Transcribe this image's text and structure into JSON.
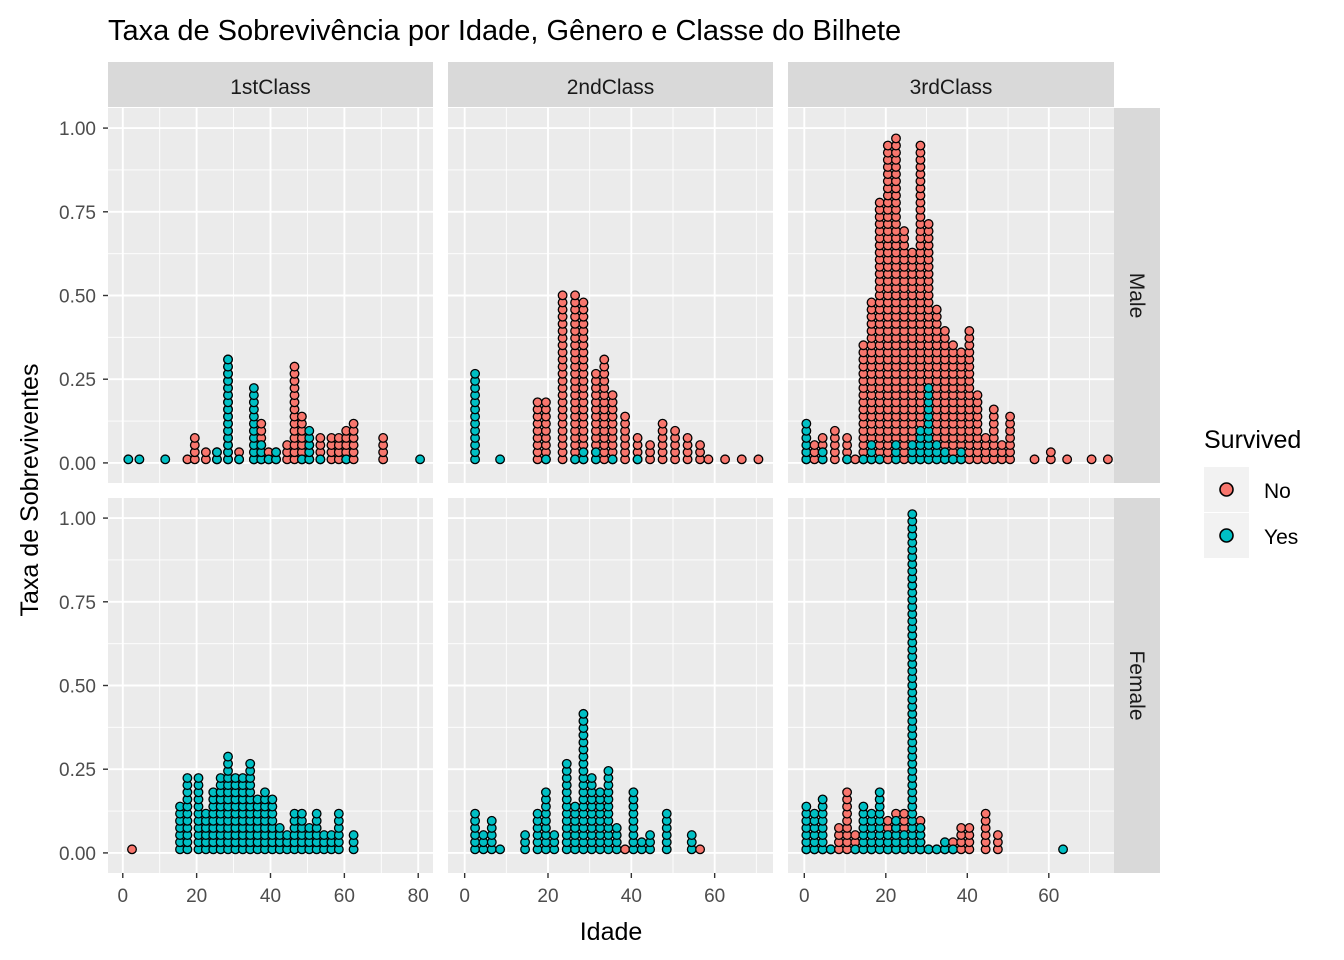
{
  "chart_data": {
    "type": "dotplot",
    "title": "Taxa de Sobrevivência por Idade, Gênero e Classe do Bilhete",
    "xlabel": "Idade",
    "ylabel": "Taxa de Sobreviventes",
    "ylim": [
      -0.06,
      1.06
    ],
    "yticks": [
      0.0,
      0.25,
      0.5,
      0.75,
      1.0
    ],
    "ytick_labels": [
      "0.00",
      "0.25",
      "0.50",
      "0.75",
      "1.00"
    ],
    "dot_step": 0.0213,
    "grid": true,
    "legend": {
      "title": "Survived",
      "position": "right",
      "entries": [
        {
          "label": "No",
          "color": "#F8766D"
        },
        {
          "label": "Yes",
          "color": "#00BFC4"
        }
      ]
    },
    "column_labels": [
      "1stClass",
      "2ndClass",
      "3rdClass"
    ],
    "row_labels": [
      "Male",
      "Female"
    ],
    "panels": [
      {
        "class": "1stClass",
        "sex": "Male",
        "xlim": [
          -4,
          84
        ],
        "xticks": [
          0,
          20,
          40,
          60,
          80
        ],
        "stacks": [
          {
            "x": 1.5,
            "no": 0,
            "yes": 1
          },
          {
            "x": 4.5,
            "no": 0,
            "yes": 1
          },
          {
            "x": 11.5,
            "no": 0,
            "yes": 1
          },
          {
            "x": 17.5,
            "no": 1,
            "yes": 0
          },
          {
            "x": 19.5,
            "no": 4,
            "yes": 0
          },
          {
            "x": 22.5,
            "no": 2,
            "yes": 0
          },
          {
            "x": 25.5,
            "no": 2,
            "yes": 2
          },
          {
            "x": 28.5,
            "no": 15,
            "yes": 15
          },
          {
            "x": 31.5,
            "no": 2,
            "yes": 1
          },
          {
            "x": 35.5,
            "no": 1,
            "yes": 11
          },
          {
            "x": 37.5,
            "no": 6,
            "yes": 3
          },
          {
            "x": 39.5,
            "no": 2,
            "yes": 1
          },
          {
            "x": 41.5,
            "no": 2,
            "yes": 2
          },
          {
            "x": 44.5,
            "no": 3,
            "yes": 0
          },
          {
            "x": 46.5,
            "no": 14,
            "yes": 0
          },
          {
            "x": 48.5,
            "no": 7,
            "yes": 1
          },
          {
            "x": 50.5,
            "no": 3,
            "yes": 5
          },
          {
            "x": 53.5,
            "no": 4,
            "yes": 1
          },
          {
            "x": 56.5,
            "no": 4,
            "yes": 0
          },
          {
            "x": 58.5,
            "no": 4,
            "yes": 0
          },
          {
            "x": 60.5,
            "no": 5,
            "yes": 1
          },
          {
            "x": 62.5,
            "no": 6,
            "yes": 0
          },
          {
            "x": 70.5,
            "no": 4,
            "yes": 0
          },
          {
            "x": 80.5,
            "no": 0,
            "yes": 1
          }
        ]
      },
      {
        "class": "2ndClass",
        "sex": "Male",
        "xlim": [
          -4,
          74
        ],
        "xticks": [
          0,
          20,
          40,
          60
        ],
        "stacks": [
          {
            "x": 2.5,
            "no": 0,
            "yes": 13
          },
          {
            "x": 8.5,
            "no": 0,
            "yes": 1
          },
          {
            "x": 17.5,
            "no": 9,
            "yes": 0
          },
          {
            "x": 19.5,
            "no": 9,
            "yes": 1
          },
          {
            "x": 23.5,
            "no": 24,
            "yes": 0
          },
          {
            "x": 26.5,
            "no": 24,
            "yes": 1
          },
          {
            "x": 28.5,
            "no": 23,
            "yes": 2
          },
          {
            "x": 31.5,
            "no": 13,
            "yes": 2
          },
          {
            "x": 33.5,
            "no": 15,
            "yes": 0
          },
          {
            "x": 35.5,
            "no": 10,
            "yes": 1
          },
          {
            "x": 38.5,
            "no": 7,
            "yes": 0
          },
          {
            "x": 41.5,
            "no": 4,
            "yes": 1
          },
          {
            "x": 44.5,
            "no": 3,
            "yes": 0
          },
          {
            "x": 47.5,
            "no": 6,
            "yes": 0
          },
          {
            "x": 50.5,
            "no": 5,
            "yes": 0
          },
          {
            "x": 53.5,
            "no": 4,
            "yes": 0
          },
          {
            "x": 56.5,
            "no": 3,
            "yes": 0
          },
          {
            "x": 58.5,
            "no": 1,
            "yes": 0
          },
          {
            "x": 62.5,
            "no": 1,
            "yes": 0
          },
          {
            "x": 66.5,
            "no": 1,
            "yes": 0
          },
          {
            "x": 70.5,
            "no": 1,
            "yes": 0
          }
        ]
      },
      {
        "class": "3rdClass",
        "sex": "Male",
        "xlim": [
          -4,
          76
        ],
        "xticks": [
          0,
          20,
          40,
          60
        ],
        "stacks": [
          {
            "x": 0.5,
            "no": 2,
            "yes": 6
          },
          {
            "x": 2.5,
            "no": 3,
            "yes": 0
          },
          {
            "x": 4.5,
            "no": 4,
            "yes": 2
          },
          {
            "x": 7.5,
            "no": 5,
            "yes": 0
          },
          {
            "x": 10.5,
            "no": 4,
            "yes": 1
          },
          {
            "x": 12.5,
            "no": 1,
            "yes": 0
          },
          {
            "x": 14.5,
            "no": 17,
            "yes": 1
          },
          {
            "x": 16.5,
            "no": 23,
            "yes": 3
          },
          {
            "x": 18.5,
            "no": 37,
            "yes": 1
          },
          {
            "x": 20.5,
            "no": 45,
            "yes": 0
          },
          {
            "x": 22.5,
            "no": 46,
            "yes": 3
          },
          {
            "x": 24.5,
            "no": 33,
            "yes": 0
          },
          {
            "x": 26.5,
            "no": 30,
            "yes": 3
          },
          {
            "x": 28.5,
            "no": 45,
            "yes": 5
          },
          {
            "x": 30.5,
            "no": 34,
            "yes": 11
          },
          {
            "x": 32.5,
            "no": 22,
            "yes": 3
          },
          {
            "x": 34.5,
            "no": 19,
            "yes": 2
          },
          {
            "x": 36.5,
            "no": 17,
            "yes": 1
          },
          {
            "x": 38.5,
            "no": 16,
            "yes": 2
          },
          {
            "x": 40.5,
            "no": 19,
            "yes": 0
          },
          {
            "x": 42.5,
            "no": 10,
            "yes": 0
          },
          {
            "x": 44.5,
            "no": 4,
            "yes": 0
          },
          {
            "x": 46.5,
            "no": 8,
            "yes": 0
          },
          {
            "x": 48.5,
            "no": 3,
            "yes": 0
          },
          {
            "x": 50.5,
            "no": 7,
            "yes": 0
          },
          {
            "x": 56.5,
            "no": 1,
            "yes": 0
          },
          {
            "x": 60.5,
            "no": 2,
            "yes": 0
          },
          {
            "x": 64.5,
            "no": 1,
            "yes": 0
          },
          {
            "x": 70.5,
            "no": 1,
            "yes": 0
          },
          {
            "x": 74.5,
            "no": 1,
            "yes": 0
          }
        ]
      },
      {
        "class": "1stClass",
        "sex": "Female",
        "xlim": [
          -4,
          84
        ],
        "xticks": [
          0,
          20,
          40,
          60,
          80
        ],
        "stacks": [
          {
            "x": 2.5,
            "no": 1,
            "yes": 0
          },
          {
            "x": 15.5,
            "no": 0,
            "yes": 7
          },
          {
            "x": 17.5,
            "no": 0,
            "yes": 11
          },
          {
            "x": 20.5,
            "no": 0,
            "yes": 11
          },
          {
            "x": 22.5,
            "no": 0,
            "yes": 6
          },
          {
            "x": 24.5,
            "no": 0,
            "yes": 9
          },
          {
            "x": 26.5,
            "no": 0,
            "yes": 11
          },
          {
            "x": 28.5,
            "no": 0,
            "yes": 14
          },
          {
            "x": 30.5,
            "no": 0,
            "yes": 11
          },
          {
            "x": 32.5,
            "no": 0,
            "yes": 11
          },
          {
            "x": 34.5,
            "no": 0,
            "yes": 13
          },
          {
            "x": 36.5,
            "no": 0,
            "yes": 8
          },
          {
            "x": 38.5,
            "no": 0,
            "yes": 9
          },
          {
            "x": 40.5,
            "no": 0,
            "yes": 8
          },
          {
            "x": 42.5,
            "no": 0,
            "yes": 4
          },
          {
            "x": 44.5,
            "no": 0,
            "yes": 3
          },
          {
            "x": 46.5,
            "no": 0,
            "yes": 6
          },
          {
            "x": 48.5,
            "no": 0,
            "yes": 6
          },
          {
            "x": 50.5,
            "no": 0,
            "yes": 4
          },
          {
            "x": 52.5,
            "no": 0,
            "yes": 6
          },
          {
            "x": 54.5,
            "no": 0,
            "yes": 3
          },
          {
            "x": 56.5,
            "no": 0,
            "yes": 3
          },
          {
            "x": 58.5,
            "no": 0,
            "yes": 6
          },
          {
            "x": 62.5,
            "no": 0,
            "yes": 3
          }
        ]
      },
      {
        "class": "2ndClass",
        "sex": "Female",
        "xlim": [
          -4,
          74
        ],
        "xticks": [
          0,
          20,
          40,
          60
        ],
        "stacks": [
          {
            "x": 2.5,
            "no": 0,
            "yes": 6
          },
          {
            "x": 4.5,
            "no": 0,
            "yes": 3
          },
          {
            "x": 6.5,
            "no": 0,
            "yes": 5
          },
          {
            "x": 8.5,
            "no": 0,
            "yes": 1
          },
          {
            "x": 14.5,
            "no": 0,
            "yes": 3
          },
          {
            "x": 17.5,
            "no": 0,
            "yes": 6
          },
          {
            "x": 19.5,
            "no": 0,
            "yes": 9
          },
          {
            "x": 21.5,
            "no": 0,
            "yes": 3
          },
          {
            "x": 24.5,
            "no": 0,
            "yes": 13
          },
          {
            "x": 26.5,
            "no": 0,
            "yes": 7
          },
          {
            "x": 28.5,
            "no": 0,
            "yes": 20
          },
          {
            "x": 30.5,
            "no": 0,
            "yes": 11
          },
          {
            "x": 32.5,
            "no": 0,
            "yes": 9
          },
          {
            "x": 34.5,
            "no": 0,
            "yes": 12
          },
          {
            "x": 36.5,
            "no": 0,
            "yes": 4
          },
          {
            "x": 38.5,
            "no": 1,
            "yes": 0
          },
          {
            "x": 40.5,
            "no": 0,
            "yes": 9
          },
          {
            "x": 42.5,
            "no": 0,
            "yes": 2
          },
          {
            "x": 44.5,
            "no": 0,
            "yes": 3
          },
          {
            "x": 48.5,
            "no": 0,
            "yes": 6
          },
          {
            "x": 54.5,
            "no": 0,
            "yes": 3
          },
          {
            "x": 56.5,
            "no": 1,
            "yes": 0
          }
        ]
      },
      {
        "class": "3rdClass",
        "sex": "Female",
        "xlim": [
          -4,
          76
        ],
        "xticks": [
          0,
          20,
          40,
          60
        ],
        "stacks": [
          {
            "x": 0.5,
            "no": 1,
            "yes": 7
          },
          {
            "x": 2.5,
            "no": 2,
            "yes": 6
          },
          {
            "x": 4.5,
            "no": 1,
            "yes": 8
          },
          {
            "x": 6.5,
            "no": 1,
            "yes": 1
          },
          {
            "x": 8.5,
            "no": 4,
            "yes": 0
          },
          {
            "x": 10.5,
            "no": 9,
            "yes": 0
          },
          {
            "x": 12.5,
            "no": 3,
            "yes": 1
          },
          {
            "x": 14.5,
            "no": 0,
            "yes": 7
          },
          {
            "x": 16.5,
            "no": 2,
            "yes": 6
          },
          {
            "x": 18.5,
            "no": 0,
            "yes": 9
          },
          {
            "x": 20.5,
            "no": 5,
            "yes": 3
          },
          {
            "x": 22.5,
            "no": 6,
            "yes": 5
          },
          {
            "x": 24.5,
            "no": 6,
            "yes": 3
          },
          {
            "x": 26.5,
            "no": 0,
            "yes": 48
          },
          {
            "x": 28.5,
            "no": 5,
            "yes": 4
          },
          {
            "x": 30.5,
            "no": 1,
            "yes": 1
          },
          {
            "x": 32.5,
            "no": 1,
            "yes": 1
          },
          {
            "x": 34.5,
            "no": 1,
            "yes": 2
          },
          {
            "x": 36.5,
            "no": 2,
            "yes": 1
          },
          {
            "x": 38.5,
            "no": 4,
            "yes": 0
          },
          {
            "x": 40.5,
            "no": 4,
            "yes": 0
          },
          {
            "x": 44.5,
            "no": 6,
            "yes": 0
          },
          {
            "x": 47.5,
            "no": 3,
            "yes": 0
          },
          {
            "x": 63.5,
            "no": 0,
            "yes": 1
          }
        ]
      }
    ]
  }
}
